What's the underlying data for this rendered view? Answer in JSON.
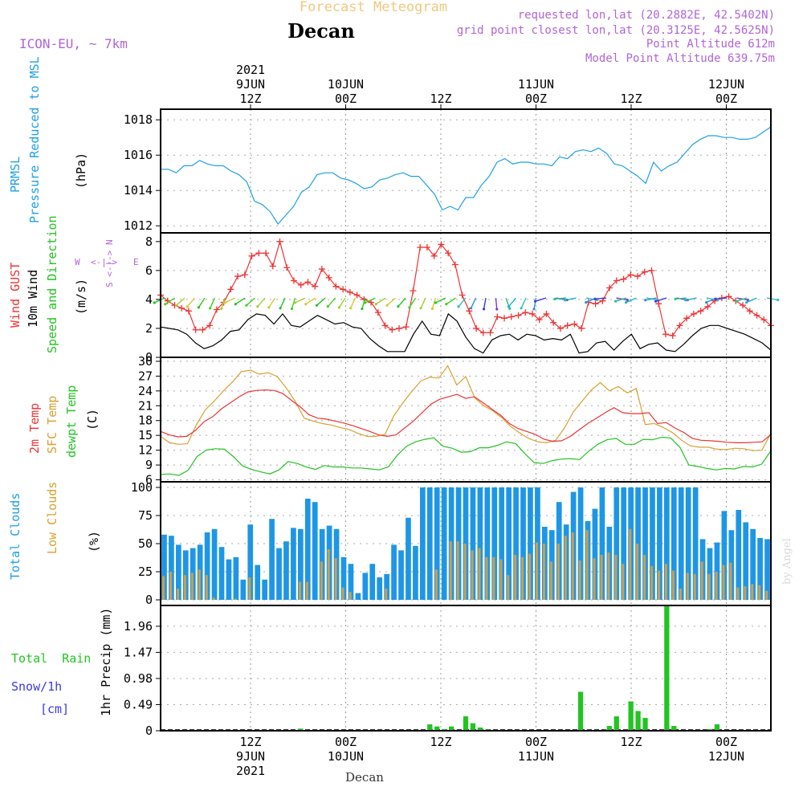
{
  "header": {
    "title": "Forecast Meteogram",
    "location": "Decan",
    "model": "ICON-EU, ~ 7km",
    "requested": "requested lon,lat (20.2882E, 42.5402N)",
    "gridpoint": "grid point closest lon,lat (20.3125E, 42.5625N)",
    "altitude": "Point Altitude 612m",
    "model_altitude": "Model Point Altitude 639.75m"
  },
  "footer": {
    "location": "Decan",
    "watermark": "by Angel"
  },
  "top_time_labels": [
    {
      "l1": "2021",
      "l2": "9JUN",
      "l3": "12Z",
      "t": 12
    },
    {
      "l1": "",
      "l2": "10JUN",
      "l3": "00Z",
      "t": 24
    },
    {
      "l1": "",
      "l2": "",
      "l3": "12Z",
      "t": 36
    },
    {
      "l1": "",
      "l2": "11JUN",
      "l3": "00Z",
      "t": 48
    },
    {
      "l1": "",
      "l2": "",
      "l3": "12Z",
      "t": 60
    },
    {
      "l1": "",
      "l2": "12JUN",
      "l3": "00Z",
      "t": 72
    }
  ],
  "bottom_time_labels": [
    {
      "l1": "12Z",
      "l2": "9JUN",
      "l3": "2021",
      "t": 12
    },
    {
      "l1": "00Z",
      "l2": "10JUN",
      "l3": "",
      "t": 24
    },
    {
      "l1": "12Z",
      "l2": "",
      "l3": "",
      "t": 36
    },
    {
      "l1": "00Z",
      "l2": "11JUN",
      "l3": "",
      "t": 48
    },
    {
      "l1": "12Z",
      "l2": "",
      "l3": "",
      "t": 60
    },
    {
      "l1": "00Z",
      "l2": "12JUN",
      "l3": "",
      "t": 72
    }
  ],
  "colors": {
    "pressure": "#1ea0e6",
    "gust": "#ee3333",
    "wind": "#000000",
    "t2m": "#ee3333",
    "sfc": "#d9a030",
    "dewpt": "#22c422",
    "total_cloud": "#1e96e6",
    "low_cloud": "#c8a050",
    "rain": "#22c422",
    "snow": "#3a3ae6",
    "purple": "#b065d6",
    "title": "#f0c880"
  },
  "panel_labels": {
    "pressure": {
      "line1": "PRMSL",
      "line2": "Pressure Reduced to MSL",
      "unit": "(hPa)"
    },
    "wind": {
      "gust": "Wind GUST",
      "wind": "10m Wind",
      "dir": "Speed and Direction",
      "unit": "(m/s)",
      "compass": {
        "n": "N",
        "s": "S",
        "w": "W",
        "e": "E",
        "ns": "S <-|-> N",
        "we": "<-|->"
      }
    },
    "temp": {
      "t2m": "2m Temp",
      "sfc": "SFC Temp",
      "dewpt": "dewpt Temp",
      "unit": "(C)"
    },
    "cloud": {
      "total": "Total Clouds",
      "low": "Low Clouds",
      "unit": "(%)"
    },
    "precip": {
      "rain": "Total  Rain",
      "snow": "Snow/1h",
      "snow_unit": "[cm]",
      "axis": "1hr Precip (mm)"
    }
  },
  "chart_data": [
    {
      "type": "line",
      "name": "pressure",
      "x_start": "09JUN2021 00Z",
      "x_step_hours": 1,
      "ylabel": "(hPa)",
      "ylim": [
        1011.6,
        1018.6
      ],
      "yticks": [
        1012,
        1014,
        1016,
        1018
      ],
      "series": [
        {
          "name": "PRMSL",
          "values": [
            1015.2,
            1015.2,
            1015.0,
            1015.4,
            1015.4,
            1015.7,
            1015.5,
            1015.4,
            1015.4,
            1015.1,
            1014.9,
            1014.5,
            1013.4,
            1013.2,
            1012.8,
            1012.1,
            1012.6,
            1013.1,
            1013.9,
            1014.2,
            1014.9,
            1015.0,
            1015.0,
            1014.7,
            1014.6,
            1014.4,
            1014.1,
            1014.2,
            1014.6,
            1014.7,
            1014.9,
            1015.0,
            1014.8,
            1014.8,
            1014.3,
            1013.8,
            1012.9,
            1013.1,
            1012.9,
            1013.6,
            1013.6,
            1014.3,
            1014.8,
            1015.6,
            1015.8,
            1015.5,
            1015.6,
            1015.6,
            1015.5,
            1015.5,
            1015.4,
            1015.9,
            1015.8,
            1016.2,
            1016.3,
            1016.2,
            1016.4,
            1016.1,
            1015.5,
            1015.4,
            1015.1,
            1014.8,
            1014.4,
            1015.6,
            1015.1,
            1015.4,
            1015.6,
            1016.1,
            1016.6,
            1016.9,
            1017.1,
            1017.1,
            1017.0,
            1017.0,
            1016.9,
            1016.9,
            1017.0,
            1017.3,
            1017.6
          ]
        }
      ]
    },
    {
      "type": "line",
      "name": "wind",
      "x_start": "09JUN2021 00Z",
      "x_step_hours": 1,
      "ylabel": "(m/s)",
      "ylim": [
        0,
        8.6
      ],
      "yticks": [
        0,
        2,
        4,
        6,
        8
      ],
      "series": [
        {
          "name": "Wind GUST",
          "values": [
            4.3,
            3.9,
            3.6,
            3.4,
            3.2,
            1.9,
            1.9,
            2.2,
            3.3,
            3.8,
            4.7,
            5.6,
            5.7,
            7.0,
            7.2,
            7.2,
            6.3,
            8.0,
            6.2,
            5.3,
            5.0,
            5.2,
            4.9,
            6.1,
            5.5,
            4.9,
            4.7,
            4.5,
            4.3,
            4.0,
            3.8,
            3.1,
            2.2,
            1.9,
            2.0,
            2.1,
            4.6,
            7.6,
            7.6,
            7.0,
            7.8,
            7.2,
            6.4,
            4.3,
            3.2,
            2.0,
            1.7,
            1.7,
            2.8,
            2.7,
            2.8,
            2.9,
            3.1,
            3.0,
            2.6,
            3.0,
            2.4,
            2.0,
            2.2,
            2.3,
            2.0,
            3.8,
            3.7,
            3.9,
            4.8,
            5.3,
            5.4,
            5.7,
            5.6,
            5.9,
            6.0,
            3.7,
            1.6,
            1.5,
            2.2,
            2.7,
            3.0,
            3.2,
            3.5,
            3.9,
            4.1,
            4.2,
            3.9,
            3.6,
            3.2,
            2.9,
            2.6,
            2.2
          ]
        },
        {
          "name": "10m Wind",
          "values": [
            2.1,
            2.0,
            1.9,
            1.6,
            1.0,
            0.6,
            0.8,
            1.2,
            1.8,
            1.9,
            2.6,
            3.0,
            2.9,
            2.3,
            3.0,
            2.2,
            2.1,
            2.5,
            2.9,
            2.6,
            2.3,
            2.4,
            2.1,
            2.0,
            1.3,
            0.8,
            0.4,
            0.4,
            0.4,
            1.6,
            2.5,
            1.6,
            1.5,
            3.0,
            2.5,
            1.4,
            0.6,
            0.3,
            1.2,
            1.5,
            1.6,
            1.2,
            1.6,
            1.5,
            1.2,
            1.3,
            1.2,
            1.6,
            0.3,
            0.4,
            1.0,
            1.1,
            0.5,
            1.1,
            1.6,
            0.6,
            0.9,
            1.0,
            0.5,
            0.4,
            0.9,
            1.5,
            2.0,
            2.2,
            2.2,
            2.0,
            1.8,
            1.6,
            1.3,
            1.0,
            0.5
          ]
        }
      ],
      "direction_arrows": {
        "y_level": 4.1,
        "count": 61
      }
    },
    {
      "type": "line",
      "name": "temperature",
      "x_start": "09JUN2021 00Z",
      "x_step_hours": 1,
      "ylabel": "(C)",
      "ylim": [
        5.6,
        30.8
      ],
      "yticks": [
        6,
        9,
        12,
        15,
        18,
        21,
        24,
        27,
        30
      ],
      "series": [
        {
          "name": "2m Temp",
          "values": [
            15.8,
            15.1,
            14.7,
            14.8,
            16.0,
            17.8,
            18.8,
            20.4,
            21.6,
            22.8,
            23.8,
            24.1,
            24.2,
            24.1,
            23.5,
            22.1,
            20.8,
            19.2,
            18.5,
            18.3,
            17.9,
            17.5,
            17.0,
            16.4,
            15.8,
            15.1,
            14.8,
            15.1,
            16.5,
            17.9,
            19.6,
            21.3,
            22.3,
            22.8,
            23.3,
            22.5,
            22.8,
            21.6,
            20.3,
            19.1,
            17.4,
            16.4,
            15.8,
            15.2,
            14.2,
            13.8,
            13.9,
            14.8,
            16.1,
            17.4,
            18.5,
            19.6,
            20.6,
            19.6,
            19.4,
            19.4,
            19.6,
            17.4,
            17.6,
            16.5,
            15.6,
            14.4,
            14.0,
            13.9,
            13.8,
            13.6,
            13.5,
            13.5,
            13.6,
            13.7,
            15.2
          ]
        },
        {
          "name": "SFC Temp",
          "values": [
            14.8,
            13.5,
            13.2,
            13.3,
            17.2,
            20.2,
            22.0,
            24.0,
            25.8,
            27.9,
            28.2,
            27.4,
            27.7,
            26.9,
            24.6,
            21.9,
            18.5,
            17.9,
            17.4,
            17.1,
            16.6,
            16.2,
            15.4,
            14.8,
            14.8,
            15.2,
            19.0,
            21.6,
            23.9,
            26.0,
            26.8,
            26.6,
            29.1,
            25.2,
            26.9,
            22.6,
            21.0,
            20.0,
            18.6,
            16.8,
            15.5,
            14.4,
            13.7,
            13.5,
            14.0,
            16.5,
            19.8,
            22.0,
            24.2,
            25.7,
            24.0,
            24.9,
            23.6,
            24.5,
            17.2,
            17.4,
            16.6,
            15.6,
            14.1,
            12.9,
            12.6,
            12.6,
            12.2,
            12.1,
            12.4,
            12.3,
            11.9,
            12.0,
            15.4
          ]
        },
        {
          "name": "dewpt Temp",
          "values": [
            7.1,
            7.2,
            6.9,
            7.9,
            10.7,
            12.0,
            12.3,
            12.2,
            10.7,
            8.8,
            8.1,
            7.6,
            7.2,
            8.0,
            9.7,
            9.3,
            8.6,
            8.1,
            8.9,
            8.6,
            8.6,
            8.4,
            8.4,
            8.2,
            8.0,
            8.6,
            11.0,
            12.8,
            13.7,
            14.2,
            14.5,
            12.8,
            12.4,
            11.6,
            11.7,
            12.5,
            12.5,
            13.0,
            13.7,
            13.3,
            11.3,
            9.5,
            9.3,
            9.9,
            10.2,
            10.3,
            10.1,
            11.8,
            13.2,
            14.1,
            14.4,
            13.2,
            13.2,
            14.2,
            14.1,
            14.6,
            14.5,
            12.6,
            9.0,
            8.7,
            8.3,
            8.0,
            8.3,
            8.2,
            8.7,
            8.6,
            9.2,
            11.9
          ]
        }
      ]
    },
    {
      "type": "bar",
      "name": "clouds",
      "x_start": "09JUN2021 00Z",
      "x_step_hours": 1,
      "ylabel": "(%)",
      "ylim": [
        -5,
        105
      ],
      "yticks": [
        0,
        25,
        50,
        75,
        100
      ],
      "series": [
        {
          "name": "Total Clouds",
          "values": [
            58,
            57,
            49,
            44,
            46,
            49,
            60,
            63,
            47,
            36,
            38,
            18,
            67,
            31,
            18,
            72,
            46,
            52,
            64,
            63,
            90,
            87,
            63,
            66,
            63,
            38,
            32,
            6,
            24,
            32,
            20,
            23,
            49,
            44,
            73,
            48,
            100,
            100,
            100,
            100,
            100,
            100,
            100,
            100,
            100,
            100,
            100,
            100,
            100,
            100,
            100,
            100,
            100,
            65,
            62,
            87,
            67,
            96,
            100,
            70,
            81,
            100,
            65,
            100,
            100,
            100,
            100,
            100,
            100,
            100,
            100,
            100,
            100,
            100,
            100,
            54,
            46,
            51,
            79,
            62,
            80,
            69,
            63,
            55,
            54
          ]
        },
        {
          "name": "Low Clouds",
          "values": [
            21,
            25,
            10,
            22,
            24,
            27,
            22,
            2,
            0,
            0,
            1,
            0,
            20,
            0,
            0,
            0,
            0,
            0,
            0,
            16,
            16,
            0,
            34,
            45,
            37,
            11,
            7,
            0,
            0,
            0,
            0,
            10,
            0,
            0,
            0,
            0,
            0,
            0,
            27,
            0,
            52,
            52,
            50,
            44,
            46,
            38,
            38,
            36,
            22,
            40,
            38,
            41,
            51,
            50,
            34,
            50,
            57,
            60,
            35,
            62,
            37,
            40,
            42,
            40,
            32,
            63,
            50,
            40,
            30,
            26,
            32,
            26,
            10,
            24,
            23,
            34,
            23,
            25,
            31,
            33,
            11,
            12,
            14,
            13,
            8
          ]
        }
      ]
    },
    {
      "type": "bar",
      "name": "precipitation",
      "x_start": "09JUN2021 00Z",
      "x_step_hours": 1,
      "ylabel": "1hr Precip (mm)",
      "ylim": [
        0,
        2.35
      ],
      "yticks": [
        0,
        0.49,
        0.98,
        1.47,
        1.96
      ],
      "series": [
        {
          "name": "Total Rain",
          "values": [
            0,
            0,
            0,
            0,
            0,
            0,
            0,
            0,
            0,
            0,
            0,
            0,
            0,
            0,
            0,
            0,
            0,
            0,
            0,
            0.04,
            0,
            0,
            0,
            0.01,
            0,
            0,
            0,
            0,
            0,
            0,
            0,
            0,
            0,
            0,
            0,
            0,
            0,
            0.12,
            0.08,
            0.03,
            0.08,
            0,
            0.27,
            0.14,
            0.06,
            0.02,
            0,
            0,
            0,
            0,
            0,
            0,
            0,
            0,
            0,
            0,
            0,
            0,
            0.73,
            0,
            0,
            0,
            0.09,
            0.27,
            0,
            0.55,
            0.37,
            0.24,
            0,
            0,
            2.36,
            0.09,
            0,
            0,
            0,
            0,
            0.03,
            0.12,
            0,
            0,
            0,
            0,
            0,
            0,
            0
          ]
        },
        {
          "name": "Snow/1h",
          "values": []
        }
      ]
    }
  ]
}
